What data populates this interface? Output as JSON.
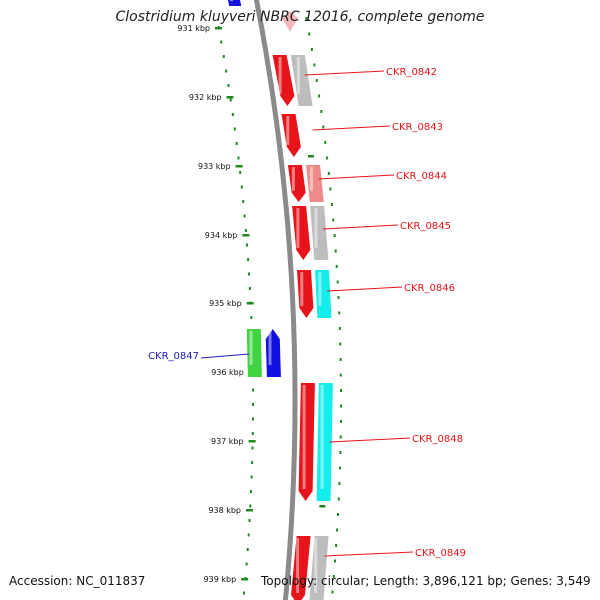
{
  "title": "Clostridium kluyveri NBRC 12016, complete genome",
  "footer": {
    "accession": "Accession: NC_011837",
    "topology": "Topology: circular; Length: 3,896,121 bp; Genes: 3,549"
  },
  "ticks": [
    "931 kbp",
    "932 kbp",
    "933 kbp",
    "934 kbp",
    "935 kbp",
    "936 kbp",
    "937 kbp",
    "938 kbp",
    "939 kbp"
  ],
  "genes": [
    {
      "label": "CKR_0842",
      "strand": "forward",
      "color": "#e8141b"
    },
    {
      "label": "CKR_0843",
      "strand": "forward",
      "color": "#e8141b"
    },
    {
      "label": "CKR_0844",
      "strand": "forward",
      "color": "#e8141b"
    },
    {
      "label": "CKR_0845",
      "strand": "forward",
      "color": "#e8141b"
    },
    {
      "label": "CKR_0846",
      "strand": "forward",
      "color": "#e8141b"
    },
    {
      "label": "CKR_0847",
      "strand": "reverse",
      "color": "#1010e0"
    },
    {
      "label": "CKR_0848",
      "strand": "forward",
      "color": "#e8141b"
    },
    {
      "label": "CKR_0849",
      "strand": "forward",
      "color": "#e8141b"
    }
  ],
  "colors": {
    "forward_label": "#e8141b",
    "reverse_label": "#1b1bb8",
    "backbone": "#8a8a8a",
    "tick": "#1f8a1f",
    "cog_grey": "#bdbdbd",
    "cog_cyan": "#15ecec",
    "cog_pink": "#ef8a8a",
    "cog_green": "#3fd33f"
  }
}
